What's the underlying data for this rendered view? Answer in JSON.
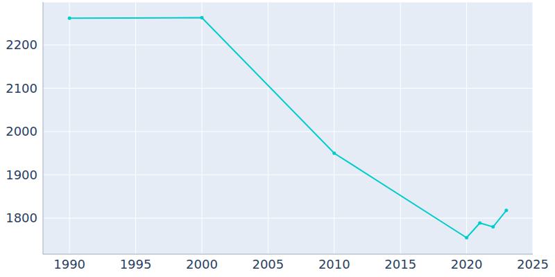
{
  "chart_data": {
    "type": "line",
    "x": [
      1990,
      2000,
      2010,
      2020,
      2021,
      2022,
      2023
    ],
    "values": [
      2262,
      2263,
      1950,
      1755,
      1789,
      1780,
      1818
    ],
    "color": "#00cccc",
    "marker": "circle",
    "xlim": [
      1988,
      2025
    ],
    "xticks": [
      1990,
      1995,
      2000,
      2005,
      2010,
      2015,
      2020,
      2025
    ],
    "ylim": [
      1717,
      2299
    ],
    "yticks": [
      1800,
      1900,
      2000,
      2100,
      2200
    ],
    "grid": true
  }
}
